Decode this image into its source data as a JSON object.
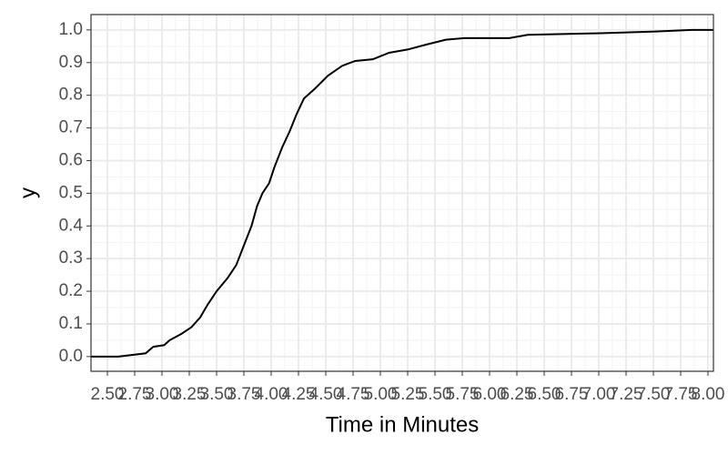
{
  "chart_data": {
    "type": "line",
    "x_label": "Time in Minutes",
    "y_label": "y",
    "x": [
      2.35,
      2.6,
      2.85,
      2.92,
      3.02,
      3.07,
      3.18,
      3.27,
      3.35,
      3.42,
      3.5,
      3.6,
      3.68,
      3.75,
      3.82,
      3.87,
      3.92,
      3.98,
      4.03,
      4.1,
      4.17,
      4.23,
      4.3,
      4.4,
      4.52,
      4.65,
      4.77,
      4.93,
      5.08,
      5.25,
      5.42,
      5.6,
      5.77,
      6.18,
      6.35,
      7.02,
      7.52,
      7.85,
      8.05
    ],
    "series": [
      {
        "color": "#000000",
        "values": [
          0.0,
          0.0,
          0.01,
          0.03,
          0.035,
          0.05,
          0.07,
          0.09,
          0.12,
          0.16,
          0.2,
          0.24,
          0.28,
          0.34,
          0.4,
          0.46,
          0.5,
          0.53,
          0.58,
          0.64,
          0.69,
          0.74,
          0.79,
          0.82,
          0.86,
          0.89,
          0.905,
          0.91,
          0.93,
          0.94,
          0.955,
          0.97,
          0.975,
          0.975,
          0.985,
          0.99,
          0.995,
          1.0,
          1.0
        ]
      }
    ],
    "xlim": [
      2.35,
      8.05
    ],
    "ylim": [
      -0.045,
      1.047
    ],
    "xticks": [
      {
        "value": 2.5,
        "label": "2.50"
      },
      {
        "value": 2.75,
        "label": "2.75"
      },
      {
        "value": 3.0,
        "label": "3.00"
      },
      {
        "value": 3.25,
        "label": "3.25"
      },
      {
        "value": 3.5,
        "label": "3.50"
      },
      {
        "value": 3.75,
        "label": "3.75"
      },
      {
        "value": 4.0,
        "label": "4.00"
      },
      {
        "value": 4.25,
        "label": "4.25"
      },
      {
        "value": 4.5,
        "label": "4.50"
      },
      {
        "value": 4.75,
        "label": "4.75"
      },
      {
        "value": 5.0,
        "label": "5.00"
      },
      {
        "value": 5.25,
        "label": "5.25"
      },
      {
        "value": 5.5,
        "label": "5.50"
      },
      {
        "value": 5.75,
        "label": "5.75"
      },
      {
        "value": 6.0,
        "label": "6.00"
      },
      {
        "value": 6.25,
        "label": "6.25"
      },
      {
        "value": 6.5,
        "label": "6.50"
      },
      {
        "value": 6.75,
        "label": "6.75"
      },
      {
        "value": 7.0,
        "label": "7.00"
      },
      {
        "value": 7.25,
        "label": "7.25"
      },
      {
        "value": 7.5,
        "label": "7.50"
      },
      {
        "value": 7.75,
        "label": "7.75"
      },
      {
        "value": 8.0,
        "label": "8.00"
      }
    ],
    "yticks": [
      {
        "value": 0,
        "label": "0.0"
      },
      {
        "value": 0.1,
        "label": "0.1"
      },
      {
        "value": 0.2,
        "label": "0.2"
      },
      {
        "value": 0.3,
        "label": "0.3"
      },
      {
        "value": 0.4,
        "label": "0.4"
      },
      {
        "value": 0.5,
        "label": "0.5"
      },
      {
        "value": 0.6,
        "label": "0.6"
      },
      {
        "value": 0.7,
        "label": "0.7"
      },
      {
        "value": 0.8,
        "label": "0.8"
      },
      {
        "value": 0.9,
        "label": "0.9"
      },
      {
        "value": 1,
        "label": "1.0"
      }
    ],
    "grid": true
  }
}
